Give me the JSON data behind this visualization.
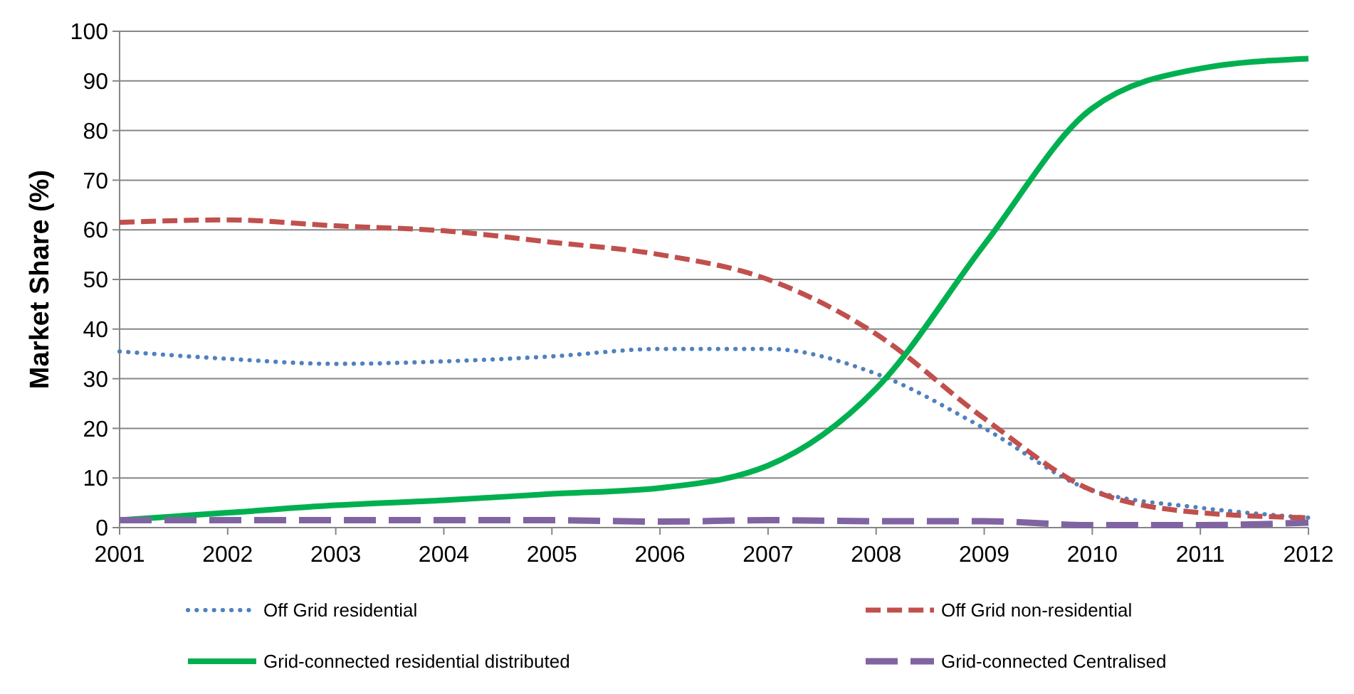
{
  "chart_data": {
    "type": "line",
    "ylabel": "Market Share (%)",
    "x": [
      2001,
      2002,
      2003,
      2004,
      2005,
      2006,
      2007,
      2008,
      2009,
      2010,
      2011,
      2012
    ],
    "xlim": [
      2001,
      2012
    ],
    "xticks": [
      2001,
      2002,
      2003,
      2004,
      2005,
      2006,
      2007,
      2008,
      2009,
      2010,
      2011,
      2012
    ],
    "ylim": [
      0,
      100
    ],
    "yticks": [
      0,
      10,
      20,
      30,
      40,
      50,
      60,
      70,
      80,
      90,
      100
    ],
    "grid": "y",
    "legend": "bottom",
    "marker": "none",
    "series": [
      {
        "name": "Off Grid residential",
        "color": "#4f81bd",
        "line_style": "dotted",
        "values": [
          35.5,
          34,
          33,
          33.5,
          34.5,
          36,
          36,
          31,
          20,
          7.5,
          4,
          2
        ]
      },
      {
        "name": "Off Grid non-residential",
        "color": "#c0504d",
        "line_style": "dashed",
        "values": [
          61.5,
          62,
          60.8,
          59.8,
          57.5,
          55,
          50,
          39,
          22,
          7.5,
          3,
          2
        ]
      },
      {
        "name": "Grid-connected residential distributed",
        "color": "#00b050",
        "line_style": "solid",
        "values": [
          1.5,
          3,
          4.5,
          5.5,
          6.8,
          8,
          12.5,
          28,
          57,
          84.5,
          92.5,
          94.5
        ]
      },
      {
        "name": "Grid-connected Centralised",
        "color": "#8064a2",
        "line_style": "dashed",
        "values": [
          1.5,
          1.5,
          1.5,
          1.5,
          1.5,
          1.2,
          1.5,
          1.3,
          1.3,
          0.5,
          0.5,
          1
        ]
      }
    ]
  }
}
